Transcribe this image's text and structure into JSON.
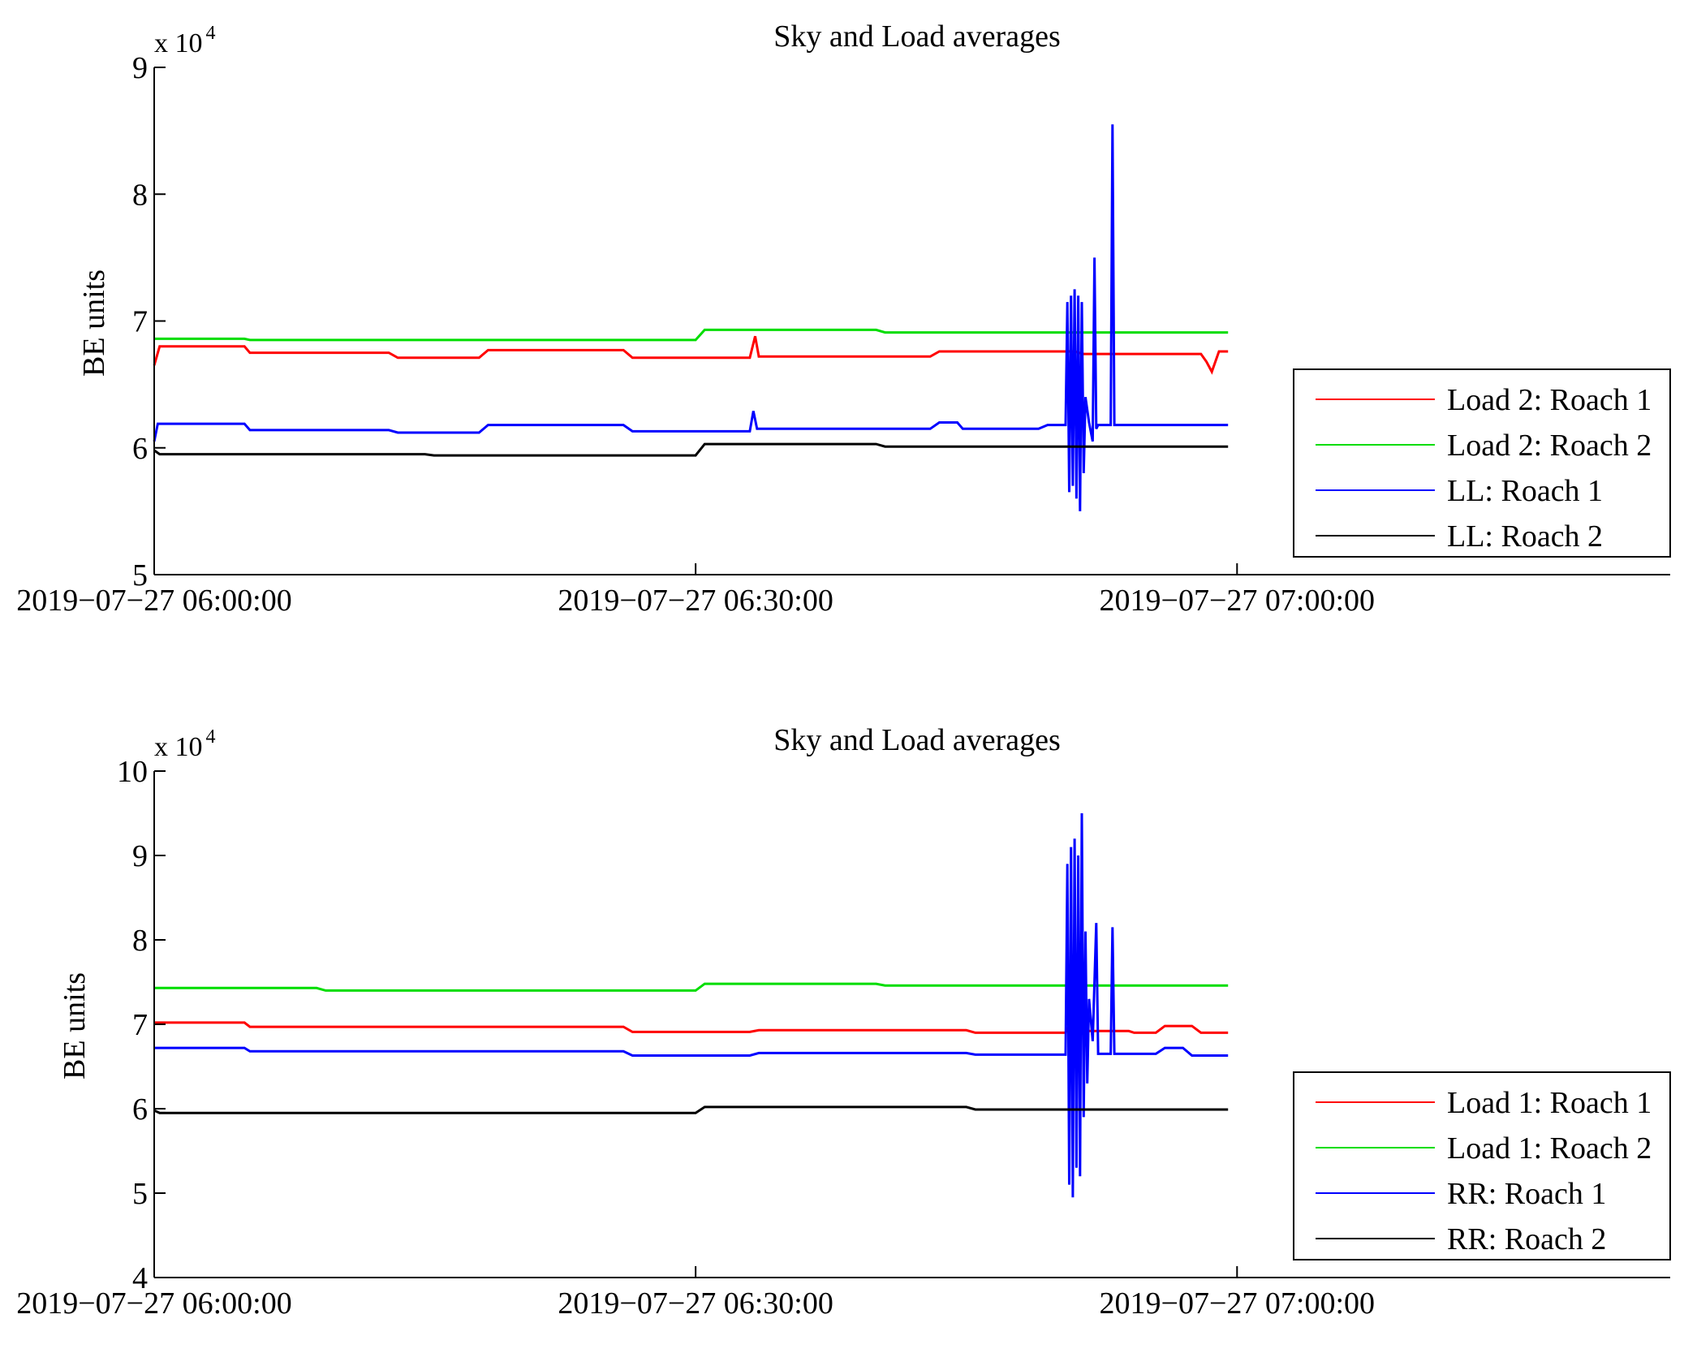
{
  "chart_data": [
    {
      "type": "line",
      "title": "Sky and Load averages",
      "ylabel": "BE units",
      "xlabel": "",
      "y_multiplier_label": "x 10",
      "y_multiplier_exp": "4",
      "ylim": [
        5,
        9
      ],
      "yticks": [
        "5",
        "6",
        "7",
        "8",
        "9"
      ],
      "xlim_minutes": [
        0,
        84
      ],
      "xtick_minutes": [
        0,
        30,
        60
      ],
      "xtick_labels": [
        "2019−07−27 06:00:00",
        "2019−07−27 06:30:00",
        "2019−07−27 07:00:00"
      ],
      "data_end_minute": 59.5,
      "legend_position": "lower-right",
      "series": [
        {
          "name": "Load 2: Roach 1",
          "color": "#ff0000",
          "points": [
            [
              0,
              6.65
            ],
            [
              0.3,
              6.8
            ],
            [
              5,
              6.8
            ],
            [
              5.3,
              6.75
            ],
            [
              13,
              6.75
            ],
            [
              13.5,
              6.71
            ],
            [
              18,
              6.71
            ],
            [
              18.5,
              6.77
            ],
            [
              26,
              6.77
            ],
            [
              26.5,
              6.71
            ],
            [
              33,
              6.71
            ],
            [
              33.3,
              6.88
            ],
            [
              33.5,
              6.72
            ],
            [
              43,
              6.72
            ],
            [
              43.5,
              6.76
            ],
            [
              48,
              6.76
            ],
            [
              48.5,
              6.76
            ],
            [
              51,
              6.76
            ],
            [
              51.5,
              6.74
            ],
            [
              58,
              6.74
            ],
            [
              58.3,
              6.68
            ],
            [
              58.6,
              6.6
            ],
            [
              59,
              6.76
            ],
            [
              59.5,
              6.76
            ]
          ]
        },
        {
          "name": "Load 2: Roach 2",
          "color": "#00dd00",
          "points": [
            [
              0,
              6.86
            ],
            [
              5,
              6.86
            ],
            [
              5.3,
              6.85
            ],
            [
              30,
              6.85
            ],
            [
              30.5,
              6.93
            ],
            [
              40,
              6.93
            ],
            [
              40.5,
              6.91
            ],
            [
              59.5,
              6.91
            ]
          ]
        },
        {
          "name": "LL: Roach 1",
          "color": "#0000ff",
          "points": [
            [
              0,
              6.05
            ],
            [
              0.2,
              6.19
            ],
            [
              5,
              6.19
            ],
            [
              5.3,
              6.14
            ],
            [
              13,
              6.14
            ],
            [
              13.5,
              6.12
            ],
            [
              18,
              6.12
            ],
            [
              18.5,
              6.18
            ],
            [
              26,
              6.18
            ],
            [
              26.5,
              6.13
            ],
            [
              33,
              6.13
            ],
            [
              33.2,
              6.29
            ],
            [
              33.4,
              6.15
            ],
            [
              43,
              6.15
            ],
            [
              43.5,
              6.2
            ],
            [
              44.5,
              6.2
            ],
            [
              44.8,
              6.15
            ],
            [
              49,
              6.15
            ],
            [
              49.5,
              6.18
            ],
            [
              50.5,
              6.18
            ],
            [
              50.6,
              7.15
            ],
            [
              50.7,
              5.65
            ],
            [
              50.8,
              7.2
            ],
            [
              50.9,
              5.7
            ],
            [
              51.0,
              7.25
            ],
            [
              51.1,
              5.6
            ],
            [
              51.2,
              7.2
            ],
            [
              51.3,
              5.5
            ],
            [
              51.4,
              7.15
            ],
            [
              51.5,
              5.8
            ],
            [
              51.6,
              6.4
            ],
            [
              51.8,
              6.2
            ],
            [
              52.0,
              6.05
            ],
            [
              52.1,
              7.5
            ],
            [
              52.2,
              6.15
            ],
            [
              52.3,
              6.18
            ],
            [
              53.0,
              6.18
            ],
            [
              53.1,
              8.55
            ],
            [
              53.2,
              6.18
            ],
            [
              59.5,
              6.18
            ]
          ]
        },
        {
          "name": "LL: Roach 2",
          "color": "#000000",
          "points": [
            [
              0,
              5.98
            ],
            [
              0.3,
              5.95
            ],
            [
              15,
              5.95
            ],
            [
              15.5,
              5.94
            ],
            [
              30,
              5.94
            ],
            [
              30.5,
              6.03
            ],
            [
              40,
              6.03
            ],
            [
              40.5,
              6.01
            ],
            [
              59.5,
              6.01
            ]
          ]
        }
      ]
    },
    {
      "type": "line",
      "title": "Sky and Load averages",
      "ylabel": "BE units",
      "xlabel": "",
      "y_multiplier_label": "x 10",
      "y_multiplier_exp": "4",
      "ylim": [
        4,
        10
      ],
      "yticks": [
        "4",
        "5",
        "6",
        "7",
        "8",
        "9",
        "10"
      ],
      "xlim_minutes": [
        0,
        84
      ],
      "xtick_minutes": [
        0,
        30,
        60
      ],
      "xtick_labels": [
        "2019−07−27 06:00:00",
        "2019−07−27 06:30:00",
        "2019−07−27 07:00:00"
      ],
      "data_end_minute": 59.5,
      "legend_position": "lower-right",
      "series": [
        {
          "name": "Load 1: Roach 1",
          "color": "#ff0000",
          "points": [
            [
              0,
              7.02
            ],
            [
              5,
              7.02
            ],
            [
              5.3,
              6.97
            ],
            [
              13,
              6.97
            ],
            [
              13.5,
              6.97
            ],
            [
              26,
              6.97
            ],
            [
              26.5,
              6.91
            ],
            [
              33,
              6.91
            ],
            [
              33.5,
              6.93
            ],
            [
              45,
              6.93
            ],
            [
              45.5,
              6.9
            ],
            [
              48,
              6.9
            ],
            [
              48.5,
              6.9
            ],
            [
              50.5,
              6.9
            ],
            [
              50.6,
              6.95
            ],
            [
              51,
              6.92
            ],
            [
              52,
              6.92
            ],
            [
              52.5,
              6.92
            ],
            [
              54,
              6.92
            ],
            [
              54.3,
              6.9
            ],
            [
              54.8,
              6.9
            ],
            [
              55.5,
              6.9
            ],
            [
              56,
              6.98
            ],
            [
              57.5,
              6.98
            ],
            [
              58,
              6.9
            ],
            [
              59.5,
              6.9
            ]
          ]
        },
        {
          "name": "Load 1: Roach 2",
          "color": "#00dd00",
          "points": [
            [
              0,
              7.43
            ],
            [
              9,
              7.43
            ],
            [
              9.5,
              7.4
            ],
            [
              30,
              7.4
            ],
            [
              30.5,
              7.48
            ],
            [
              40,
              7.48
            ],
            [
              40.5,
              7.46
            ],
            [
              59.5,
              7.46
            ]
          ]
        },
        {
          "name": "RR: Roach 1",
          "color": "#0000ff",
          "points": [
            [
              0,
              6.72
            ],
            [
              5,
              6.72
            ],
            [
              5.3,
              6.68
            ],
            [
              26,
              6.68
            ],
            [
              26.5,
              6.63
            ],
            [
              33,
              6.63
            ],
            [
              33.5,
              6.66
            ],
            [
              45,
              6.66
            ],
            [
              45.5,
              6.64
            ],
            [
              50.5,
              6.64
            ],
            [
              50.6,
              8.9
            ],
            [
              50.7,
              5.1
            ],
            [
              50.8,
              9.1
            ],
            [
              50.9,
              4.95
            ],
            [
              51.0,
              9.2
            ],
            [
              51.1,
              5.3
            ],
            [
              51.2,
              9.0
            ],
            [
              51.3,
              5.2
            ],
            [
              51.4,
              9.5
            ],
            [
              51.5,
              5.9
            ],
            [
              51.6,
              8.1
            ],
            [
              51.7,
              6.3
            ],
            [
              51.8,
              7.3
            ],
            [
              52.0,
              6.8
            ],
            [
              52.2,
              8.2
            ],
            [
              52.3,
              6.65
            ],
            [
              53.0,
              6.65
            ],
            [
              53.1,
              8.15
            ],
            [
              53.2,
              6.65
            ],
            [
              55.5,
              6.65
            ],
            [
              56,
              6.72
            ],
            [
              57,
              6.72
            ],
            [
              57.5,
              6.63
            ],
            [
              59.5,
              6.63
            ]
          ]
        },
        {
          "name": "RR: Roach 2",
          "color": "#000000",
          "points": [
            [
              0,
              5.98
            ],
            [
              0.3,
              5.95
            ],
            [
              30,
              5.95
            ],
            [
              30.5,
              6.02
            ],
            [
              45,
              6.02
            ],
            [
              45.5,
              5.99
            ],
            [
              59.5,
              5.99
            ]
          ]
        }
      ]
    }
  ]
}
